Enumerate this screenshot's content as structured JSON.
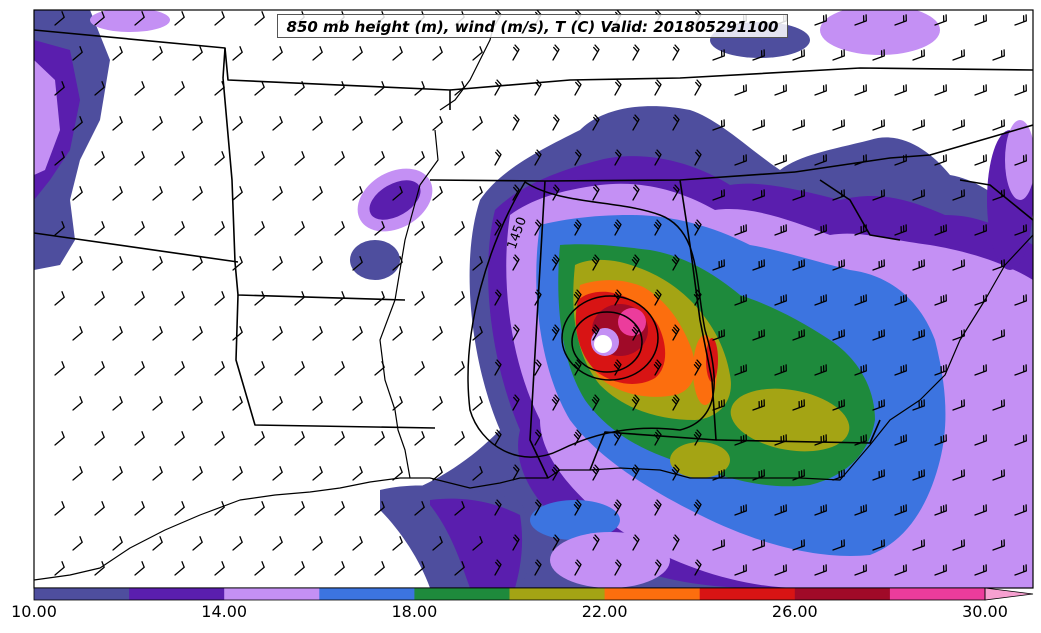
{
  "title": "850 mb height (m), wind (m/s), T (C) Valid: 201805291100",
  "contour_label": "1450",
  "colorbar": {
    "colors": [
      "#4e4e9e",
      "#5a1eae",
      "#c490f4",
      "#3c74e0",
      "#1e8a3c",
      "#a4a414",
      "#fc6e0e",
      "#d81414",
      "#a00a28",
      "#ec3c9c",
      "#f6a0d0"
    ],
    "labels": [
      "10.00",
      "14.00",
      "18.00",
      "22.00",
      "26.00",
      "30.00"
    ]
  },
  "colors": {
    "state_border": "#000000",
    "coastline": "#000000",
    "background": "#ffffff"
  }
}
